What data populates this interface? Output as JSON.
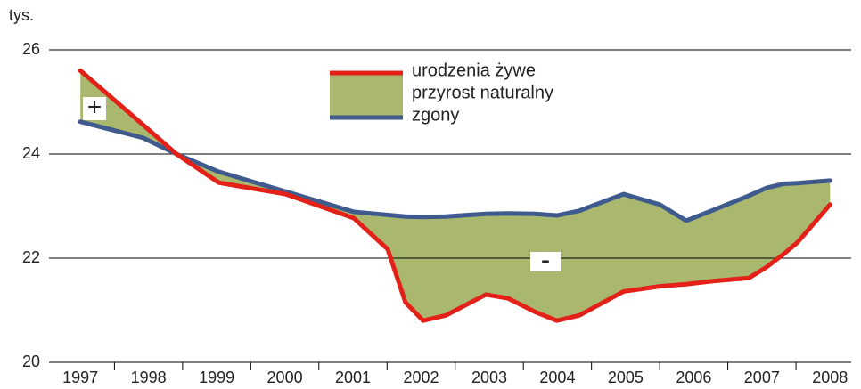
{
  "chart_data": {
    "type": "line",
    "unit_label": "tys.",
    "x": [
      1997,
      1997.92,
      1998.41,
      1999.03,
      2000.01,
      2001.01,
      2001.51,
      2001.77,
      2002.03,
      2002.36,
      2002.95,
      2003.27,
      2003.67,
      2003.99,
      2004.32,
      2004.97,
      2005.5,
      2005.89,
      2006.28,
      2006.81,
      2007.07,
      2007.33,
      2007.52,
      2008
    ],
    "series": [
      {
        "name": "urodzenia żywe",
        "color": "#e32119",
        "values": [
          25.6,
          24.56,
          24.0,
          23.45,
          23.23,
          22.77,
          22.17,
          21.15,
          20.8,
          20.9,
          21.3,
          21.23,
          20.97,
          20.8,
          20.9,
          21.36,
          21.46,
          21.5,
          21.56,
          21.62,
          21.83,
          22.09,
          22.3,
          23.03
        ]
      },
      {
        "name": "zgony",
        "color": "#3f5a8c",
        "values": [
          24.62,
          24.31,
          24.0,
          23.66,
          23.28,
          22.89,
          22.83,
          22.8,
          22.79,
          22.8,
          22.85,
          22.86,
          22.85,
          22.82,
          22.91,
          23.23,
          23.03,
          22.72,
          22.92,
          23.2,
          23.35,
          23.43,
          23.44,
          23.49
        ]
      }
    ],
    "area": {
      "name": "przyrost naturalny",
      "color": "#a9b86e"
    },
    "annotations": [
      "+",
      "-"
    ],
    "xlim": [
      1996.54,
      2008.31
    ],
    "xticks": [
      1997,
      1998,
      1999,
      2000,
      2001,
      2002,
      2003,
      2004,
      2005,
      2006,
      2007,
      2008
    ],
    "ylim": [
      20,
      26
    ],
    "yticks": [
      20,
      22,
      24,
      26
    ],
    "grid": true
  }
}
